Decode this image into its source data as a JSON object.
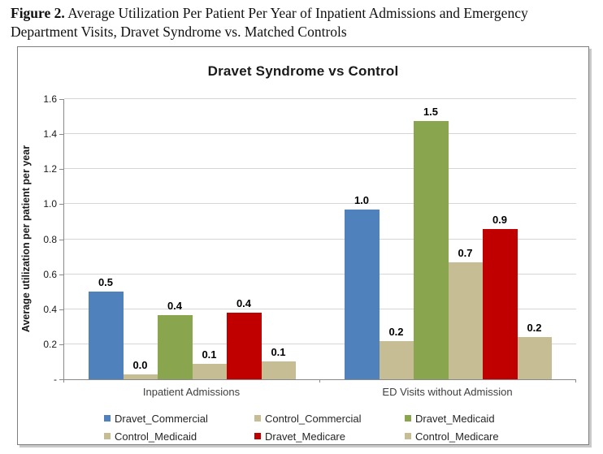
{
  "figure_caption": {
    "label": "Figure 2.",
    "text": "Average Utilization Per Patient Per Year of Inpatient Admissions and Emergency Department Visits, Dravet Syndrome vs. Matched Controls"
  },
  "chart_data": {
    "type": "bar",
    "title": "Dravet Syndrome vs Control",
    "ylabel": "Average utilization per patient per year",
    "xlabel": "",
    "categories": [
      "Inpatient Admissions",
      "ED Visits without Admission"
    ],
    "series": [
      {
        "name": "Dravet_Commercial",
        "color": "#4F81BD",
        "values": [
          0.5,
          1.0
        ],
        "labels": [
          "0.5",
          "1.0"
        ],
        "plot_values": [
          0.5,
          0.97
        ]
      },
      {
        "name": "Control_Commercial",
        "color": "#C6BD94",
        "values": [
          0.0,
          0.2
        ],
        "labels": [
          "0.0",
          "0.2"
        ],
        "plot_values": [
          0.03,
          0.22
        ]
      },
      {
        "name": "Dravet_Medicaid",
        "color": "#89A54E",
        "values": [
          0.4,
          1.5
        ],
        "labels": [
          "0.4",
          "1.5"
        ],
        "plot_values": [
          0.365,
          1.475
        ]
      },
      {
        "name": "Control_Medicaid",
        "color": "#C6BD94",
        "values": [
          0.1,
          0.7
        ],
        "labels": [
          "0.1",
          "0.7"
        ],
        "plot_values": [
          0.09,
          0.67
        ]
      },
      {
        "name": "Dravet_Medicare",
        "color": "#C00000",
        "values": [
          0.4,
          0.9
        ],
        "labels": [
          "0.4",
          "0.9"
        ],
        "plot_values": [
          0.38,
          0.86
        ]
      },
      {
        "name": "Control_Medicare",
        "color": "#C6BD94",
        "values": [
          0.1,
          0.2
        ],
        "labels": [
          "0.1",
          "0.2"
        ],
        "plot_values": [
          0.1,
          0.24
        ]
      }
    ],
    "ylim": [
      0,
      1.6
    ],
    "yticks": [
      {
        "v": 1.6,
        "label": "1.6"
      },
      {
        "v": 1.4,
        "label": "1.4"
      },
      {
        "v": 1.2,
        "label": "1.2"
      },
      {
        "v": 1.0,
        "label": "1.0"
      },
      {
        "v": 0.8,
        "label": "0.8"
      },
      {
        "v": 0.6,
        "label": "0.6"
      },
      {
        "v": 0.4,
        "label": "0.4"
      },
      {
        "v": 0.2,
        "label": "0.2"
      },
      {
        "v": 0.0,
        "label": "-"
      }
    ],
    "grid": true,
    "legend_position": "bottom",
    "legend_rows": 2,
    "legend_columns": 3
  },
  "style_colors": {
    "gridline": "#d6d6d6",
    "axis_line": "#898989",
    "chart_border": "#7f7f7f"
  }
}
